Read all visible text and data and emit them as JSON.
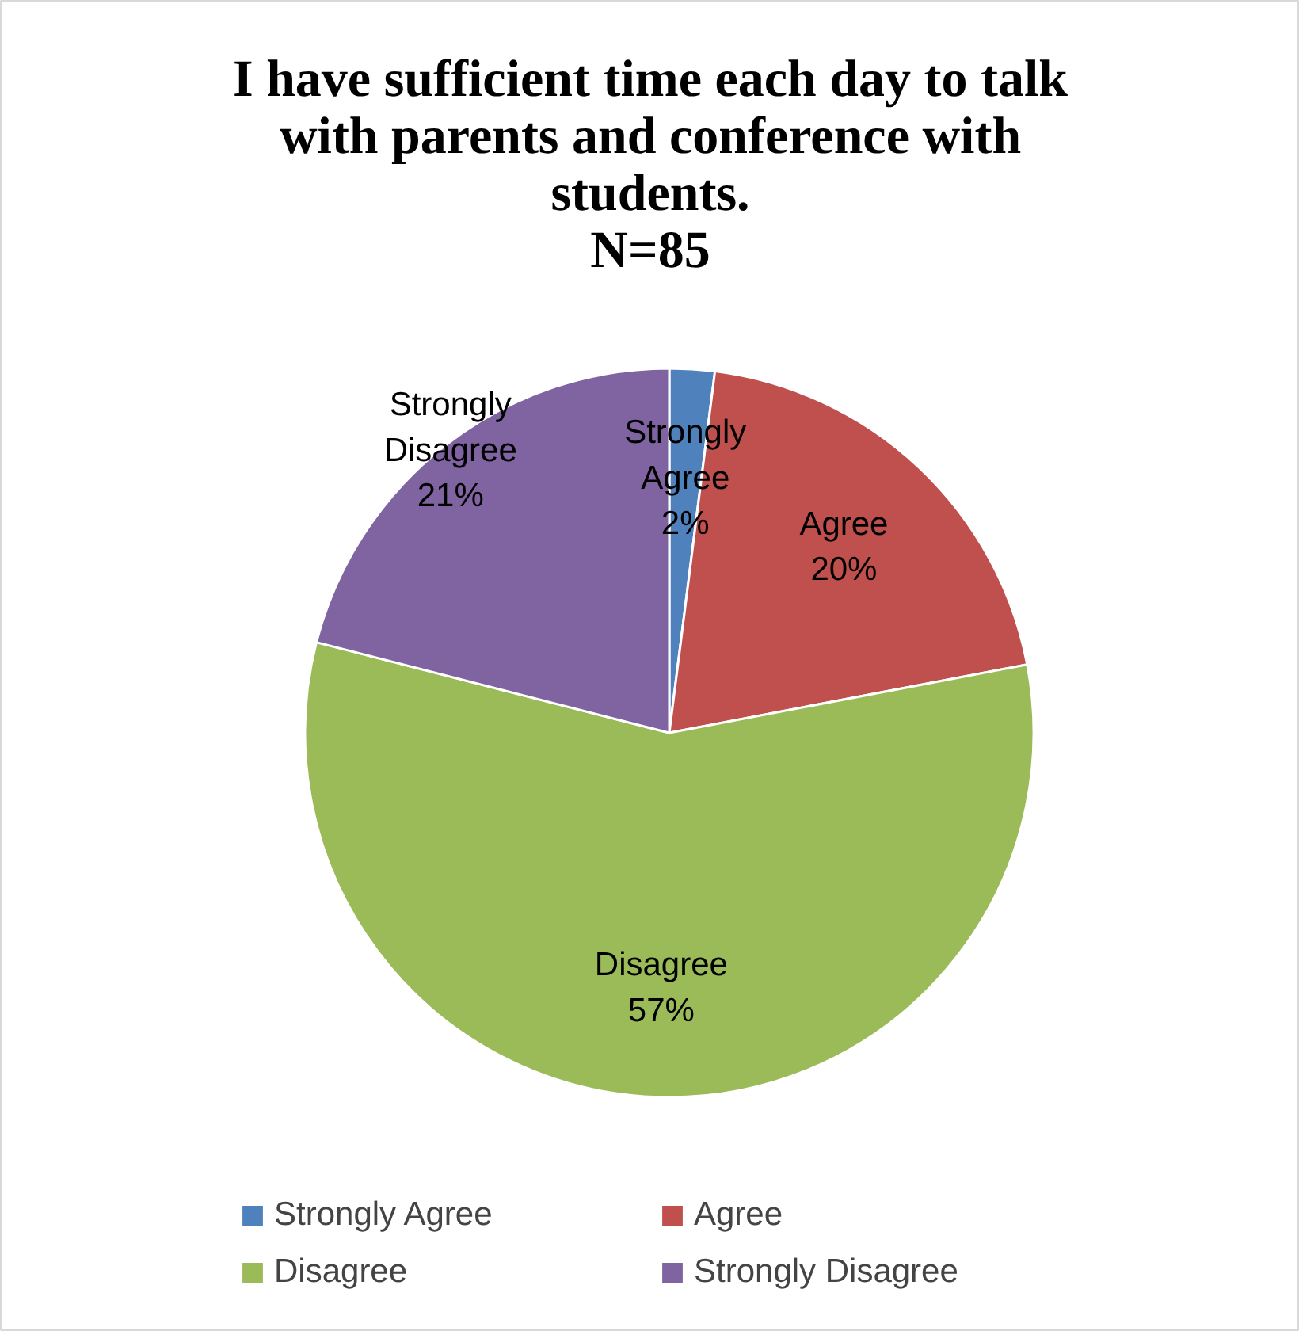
{
  "chart_data": {
    "type": "pie",
    "title": "I have sufficient time each day to talk with parents and conference with students.",
    "subtitle": "N=85",
    "categories": [
      "Strongly Agree",
      "Agree",
      "Disagree",
      "Strongly Disagree"
    ],
    "values": [
      2,
      20,
      57,
      21
    ],
    "colors": [
      "#4f81bd",
      "#c0504d",
      "#9bbb59",
      "#8064a2"
    ],
    "value_labels": [
      "Strongly\nAgree\n2%",
      "Agree\n20%",
      "Disagree\n57%",
      "Strongly\nDisagree\n21%"
    ],
    "legend": "bottom"
  }
}
